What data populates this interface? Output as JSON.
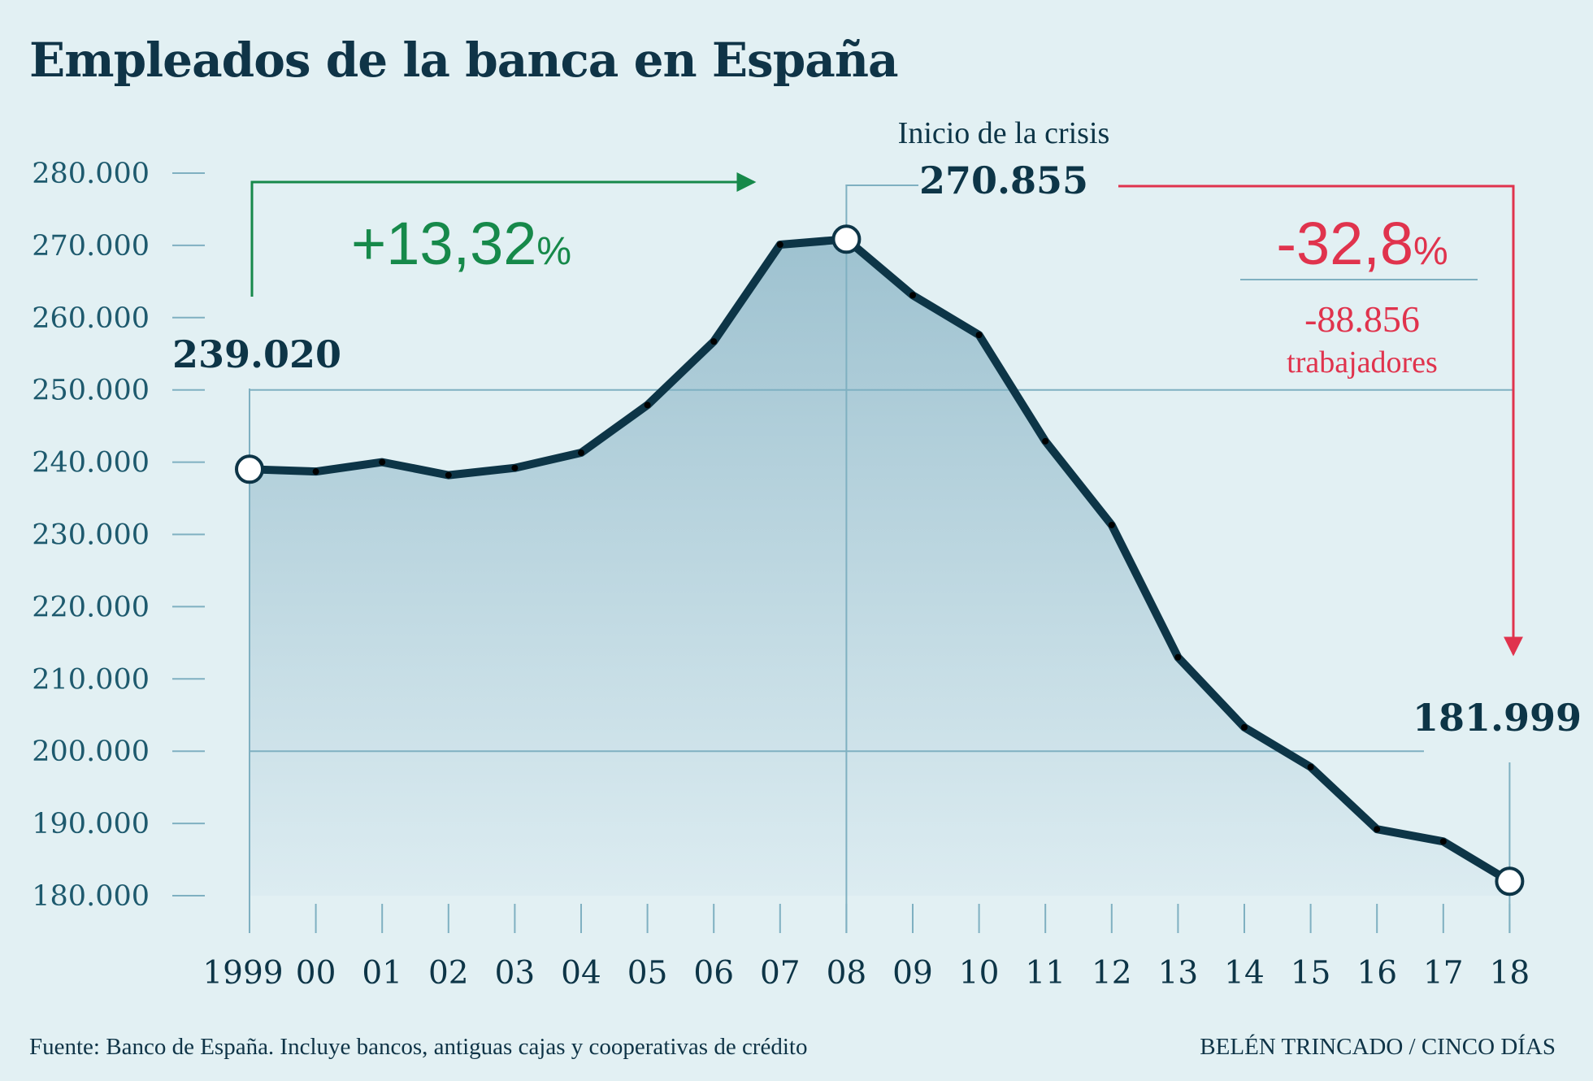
{
  "title": "Empleados de la banca en España",
  "footer": {
    "source": "Fuente: Banco de España. Incluye bancos, antiguas cajas y cooperativas de crédito",
    "credit": "BELÉN TRINCADO / CINCO DÍAS"
  },
  "colors": {
    "line": "#0d3547",
    "axis_text": "#1e5a6e",
    "up": "#16894a",
    "down": "#e0334d",
    "grid": "#7fb0c1"
  },
  "chart_data": {
    "type": "area",
    "title": "Empleados de la banca en España",
    "xlabel": "",
    "ylabel": "",
    "categories": [
      "1999",
      "00",
      "01",
      "02",
      "03",
      "04",
      "05",
      "06",
      "07",
      "08",
      "09",
      "10",
      "11",
      "12",
      "13",
      "14",
      "15",
      "16",
      "17",
      "18"
    ],
    "values": [
      239020,
      238700,
      240000,
      238200,
      239200,
      241300,
      247900,
      256700,
      270100,
      270855,
      263100,
      257600,
      242900,
      231300,
      213000,
      203300,
      197800,
      189200,
      187500,
      181999
    ],
    "ylim": [
      180000,
      280000
    ],
    "yticks": [
      280000,
      270000,
      260000,
      250000,
      240000,
      230000,
      220000,
      210000,
      200000,
      190000,
      180000
    ],
    "ytick_labels": [
      "280.000",
      "270.000",
      "260.000",
      "250.000",
      "240.000",
      "230.000",
      "220.000",
      "210.000",
      "200.000",
      "190.000",
      "180.000"
    ],
    "reference_lines": [
      250000,
      200000
    ],
    "highlight_indices": [
      0,
      9,
      19
    ],
    "annotations": {
      "start_value": "239.020",
      "peak_label": "Inicio de la crisis",
      "peak_value": "270.855",
      "end_value": "181.999",
      "increase_pct": "+13,32",
      "decrease_pct": "-32,8",
      "percent_sign": "%",
      "decrease_abs": "-88.856",
      "decrease_unit": "trabajadores"
    }
  }
}
